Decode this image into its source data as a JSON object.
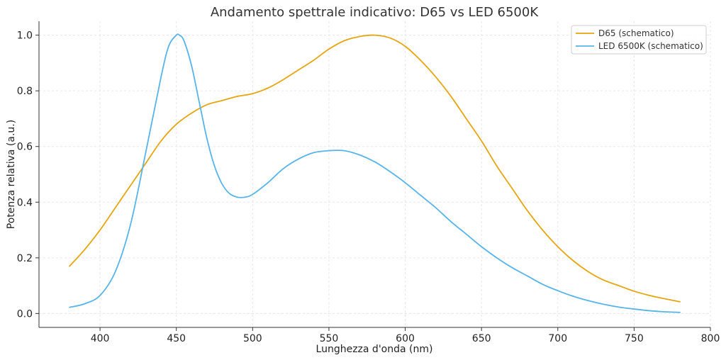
{
  "chart_data": {
    "type": "line",
    "title": "Andamento spettrale indicativo: D65 vs LED 6500K",
    "xlabel": "Lunghezza d'onda (nm)",
    "ylabel": "Potenza relativa (a.u.)",
    "xlim": [
      360,
      800
    ],
    "ylim": [
      -0.05,
      1.05
    ],
    "xticks": [
      400,
      450,
      500,
      550,
      600,
      650,
      700,
      750,
      800
    ],
    "yticks": [
      0.0,
      0.2,
      0.4,
      0.6,
      0.8,
      1.0
    ],
    "xtick_labels": [
      "400",
      "450",
      "500",
      "550",
      "600",
      "650",
      "700",
      "750",
      "800"
    ],
    "ytick_labels": [
      "0.0",
      "0.2",
      "0.4",
      "0.6",
      "0.8",
      "1.0"
    ],
    "grid": true,
    "legend_position": "top-right",
    "series": [
      {
        "name": "D65 (schematico)",
        "color": "#E5A50F",
        "x": [
          380,
          390,
          400,
          410,
          420,
          430,
          440,
          450,
          460,
          470,
          480,
          490,
          500,
          510,
          520,
          530,
          540,
          550,
          560,
          570,
          580,
          590,
          600,
          610,
          620,
          630,
          640,
          650,
          660,
          670,
          680,
          690,
          700,
          710,
          720,
          730,
          740,
          750,
          760,
          770,
          780
        ],
        "values": [
          0.17,
          0.23,
          0.3,
          0.38,
          0.46,
          0.54,
          0.62,
          0.68,
          0.72,
          0.75,
          0.765,
          0.78,
          0.79,
          0.81,
          0.84,
          0.875,
          0.91,
          0.95,
          0.98,
          0.995,
          1.0,
          0.99,
          0.96,
          0.91,
          0.85,
          0.78,
          0.7,
          0.62,
          0.53,
          0.45,
          0.37,
          0.3,
          0.24,
          0.19,
          0.15,
          0.12,
          0.1,
          0.08,
          0.065,
          0.053,
          0.042
        ]
      },
      {
        "name": "LED 6500K (schematico)",
        "color": "#56B4E9",
        "x": [
          380,
          390,
          400,
          410,
          420,
          430,
          440,
          445,
          450,
          452,
          455,
          460,
          465,
          470,
          475,
          480,
          485,
          490,
          495,
          500,
          510,
          520,
          530,
          540,
          550,
          560,
          570,
          580,
          590,
          600,
          610,
          620,
          630,
          640,
          650,
          660,
          670,
          680,
          690,
          700,
          710,
          720,
          730,
          740,
          750,
          760,
          770,
          780
        ],
        "values": [
          0.022,
          0.035,
          0.065,
          0.15,
          0.32,
          0.58,
          0.85,
          0.96,
          1.0,
          1.0,
          0.98,
          0.89,
          0.76,
          0.63,
          0.53,
          0.465,
          0.43,
          0.418,
          0.418,
          0.428,
          0.47,
          0.52,
          0.555,
          0.578,
          0.585,
          0.585,
          0.57,
          0.545,
          0.51,
          0.47,
          0.425,
          0.38,
          0.33,
          0.285,
          0.24,
          0.2,
          0.165,
          0.135,
          0.105,
          0.082,
          0.062,
          0.046,
          0.033,
          0.023,
          0.016,
          0.01,
          0.006,
          0.004
        ]
      }
    ]
  }
}
